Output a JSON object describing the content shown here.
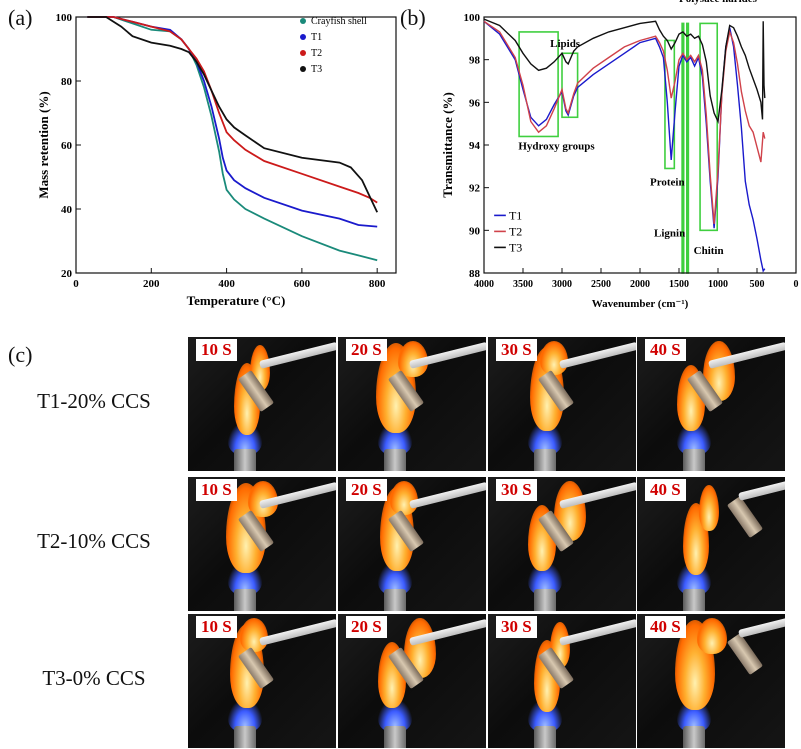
{
  "panels": {
    "a": "(a)",
    "b": "(b)",
    "c": "(c)"
  },
  "chart_data": [
    {
      "type": "line",
      "xlabel": "Temperature (°C)",
      "ylabel": "Mass retention (%)",
      "xlim": [
        0,
        850
      ],
      "ylim": [
        20,
        100
      ],
      "xticks": [
        "0",
        "200",
        "400",
        "600",
        "800"
      ],
      "yticks": [
        "20",
        "40",
        "60",
        "80",
        "100"
      ],
      "legend_position": "top-right",
      "series": [
        {
          "name": "Crayfish shell",
          "color": "#1a8a7a",
          "x": [
            30,
            100,
            150,
            200,
            250,
            280,
            300,
            320,
            340,
            360,
            380,
            390,
            400,
            420,
            450,
            500,
            600,
            700,
            750,
            800
          ],
          "y": [
            100,
            100,
            98,
            96,
            95.5,
            93,
            90,
            85,
            78,
            69,
            58,
            51,
            46,
            43,
            40,
            37,
            31.5,
            27,
            25.5,
            24
          ]
        },
        {
          "name": "T1",
          "color": "#1a1acc",
          "x": [
            30,
            100,
            150,
            200,
            250,
            280,
            300,
            320,
            340,
            360,
            380,
            390,
            400,
            420,
            450,
            500,
            600,
            700,
            750,
            800
          ],
          "y": [
            100,
            100,
            98.5,
            97,
            96,
            93,
            90,
            86,
            80,
            72,
            62,
            56,
            52,
            49,
            46.5,
            43.5,
            39.5,
            37,
            35,
            34.5
          ]
        },
        {
          "name": "T2",
          "color": "#cc1a1a",
          "x": [
            30,
            100,
            150,
            200,
            250,
            280,
            300,
            320,
            340,
            360,
            380,
            400,
            420,
            450,
            500,
            600,
            700,
            750,
            780,
            800
          ],
          "y": [
            100,
            100,
            98.5,
            97,
            95.5,
            93,
            90,
            87,
            83,
            77,
            70,
            64,
            61.5,
            58.5,
            55,
            51,
            47,
            45,
            43.5,
            42
          ]
        },
        {
          "name": "T3",
          "color": "#111111",
          "x": [
            30,
            80,
            120,
            150,
            200,
            250,
            280,
            300,
            320,
            340,
            360,
            380,
            400,
            420,
            450,
            500,
            600,
            700,
            730,
            760,
            780,
            800
          ],
          "y": [
            100,
            100,
            97,
            94,
            92,
            91,
            90,
            89,
            86,
            82,
            77,
            72,
            68,
            65.5,
            63,
            59,
            56,
            54.5,
            53,
            49,
            44,
            39
          ]
        }
      ]
    },
    {
      "type": "line",
      "xlabel": "Wavenumber (cm⁻¹)",
      "ylabel": "Transmittance (%)",
      "xlim": [
        4000,
        0
      ],
      "ylim": [
        88,
        100
      ],
      "xticks": [
        "4000",
        "3500",
        "3000",
        "2500",
        "2000",
        "1500",
        "1000",
        "500",
        "0"
      ],
      "yticks": [
        "88",
        "90",
        "92",
        "94",
        "96",
        "98",
        "100"
      ],
      "legend_position": "bottom-left",
      "annotations": [
        "Hydroxy groups",
        "Lipids",
        "Protein",
        "Lignin",
        "Chitin",
        "Polysacc harides"
      ],
      "series": [
        {
          "name": "T1",
          "color": "#1a1acc",
          "x": [
            4000,
            3800,
            3600,
            3500,
            3400,
            3300,
            3200,
            3100,
            3000,
            2950,
            2920,
            2850,
            2800,
            2600,
            2400,
            2200,
            2000,
            1800,
            1750,
            1700,
            1650,
            1600,
            1550,
            1500,
            1450,
            1400,
            1350,
            1300,
            1250,
            1200,
            1150,
            1100,
            1050,
            1000,
            950,
            900,
            850,
            800,
            750,
            700,
            650,
            600,
            550,
            500,
            450,
            420,
            400
          ],
          "y": [
            99.8,
            99.2,
            98,
            96.6,
            95.3,
            94.9,
            95.2,
            95.9,
            96.5,
            95.6,
            95.4,
            96.3,
            96.7,
            97.3,
            97.8,
            98.3,
            98.8,
            99,
            98.6,
            98.1,
            96,
            93.3,
            95.6,
            97.7,
            98.2,
            97.9,
            98.1,
            97.7,
            98.1,
            97.2,
            95,
            92.3,
            90.1,
            92.5,
            96.5,
            98.6,
            99.5,
            98.6,
            96.8,
            94.8,
            92.3,
            91.2,
            90.5,
            89.6,
            88.6,
            88.1,
            88.2
          ]
        },
        {
          "name": "T2",
          "color": "#d0424a",
          "x": [
            4000,
            3800,
            3600,
            3500,
            3400,
            3300,
            3200,
            3100,
            3000,
            2950,
            2920,
            2850,
            2800,
            2600,
            2400,
            2200,
            2000,
            1800,
            1750,
            1700,
            1650,
            1600,
            1550,
            1500,
            1450,
            1400,
            1350,
            1300,
            1250,
            1200,
            1150,
            1100,
            1050,
            1000,
            950,
            900,
            850,
            800,
            750,
            700,
            650,
            600,
            550,
            500,
            450,
            420,
            400
          ],
          "y": [
            99.8,
            99.3,
            98.1,
            96.8,
            95.1,
            94.6,
            94.9,
            95.7,
            96.6,
            95.7,
            95.5,
            96.4,
            96.9,
            97.6,
            98.1,
            98.6,
            98.9,
            99.1,
            98.8,
            98.4,
            97.5,
            96.2,
            97,
            98,
            98.3,
            98,
            98.2,
            97.9,
            98.2,
            97.5,
            95.4,
            92.6,
            90.3,
            92.8,
            96.4,
            98.4,
            99.3,
            98.8,
            97.8,
            96.5,
            95.6,
            94.9,
            94.6,
            93.9,
            93.2,
            94.6,
            94.3
          ]
        },
        {
          "name": "T3",
          "color": "#111111",
          "x": [
            4000,
            3800,
            3600,
            3500,
            3400,
            3300,
            3200,
            3100,
            3000,
            2950,
            2920,
            2850,
            2800,
            2600,
            2400,
            2200,
            2000,
            1800,
            1750,
            1700,
            1650,
            1600,
            1550,
            1500,
            1450,
            1400,
            1350,
            1300,
            1250,
            1200,
            1150,
            1100,
            1050,
            1000,
            950,
            900,
            850,
            800,
            750,
            700,
            650,
            600,
            550,
            500,
            450,
            430,
            420,
            410,
            400
          ],
          "y": [
            99.9,
            99.6,
            98.9,
            98.3,
            97.8,
            97.5,
            97.6,
            97.9,
            98.3,
            97.9,
            97.8,
            98.4,
            98.6,
            99,
            99.3,
            99.5,
            99.7,
            99.8,
            99.4,
            99.1,
            98.9,
            98.5,
            98.8,
            99.2,
            99.3,
            99.1,
            99.2,
            99,
            99.1,
            98.7,
            97.9,
            96.3,
            95.5,
            95.1,
            96.6,
            98.6,
            99.6,
            99.5,
            99.1,
            98.6,
            98.2,
            97.6,
            97.1,
            96.6,
            96,
            95.2,
            99.8,
            96.8,
            96.2
          ]
        }
      ],
      "highlight_boxes": [
        {
          "label": "Hydroxy groups",
          "x": [
            3550,
            3050
          ],
          "y": [
            94.4,
            99.3
          ]
        },
        {
          "label": "Lipids",
          "x": [
            3000,
            2800
          ],
          "y": [
            95.3,
            98.3
          ]
        },
        {
          "label": "Protein",
          "x": [
            1680,
            1560
          ],
          "y": [
            92.9,
            98.9
          ]
        },
        {
          "label": "Lignin",
          "x": [
            1460,
            1440
          ],
          "y": [
            88,
            99.7
          ]
        },
        {
          "label": "Lignin2",
          "x": [
            1400,
            1380
          ],
          "y": [
            88,
            99.7
          ]
        },
        {
          "label": "Chitin",
          "x": [
            1230,
            1010
          ],
          "y": [
            90,
            99.7
          ]
        }
      ]
    }
  ],
  "flammability": {
    "rows": [
      {
        "label": "T1-20% CCS",
        "times": [
          "10 S",
          "20 S",
          "30 S",
          "40 S"
        ]
      },
      {
        "label": "T2-10% CCS",
        "times": [
          "10 S",
          "20 S",
          "30 S",
          "40 S"
        ]
      },
      {
        "label": "T3-0% CCS",
        "times": [
          "10 S",
          "20 S",
          "30 S",
          "40 S"
        ]
      }
    ],
    "colors": {
      "badge_text": "#d00000",
      "badge_bg": "#ffffff",
      "flame": "#ff7a10",
      "background": "#111111"
    }
  }
}
